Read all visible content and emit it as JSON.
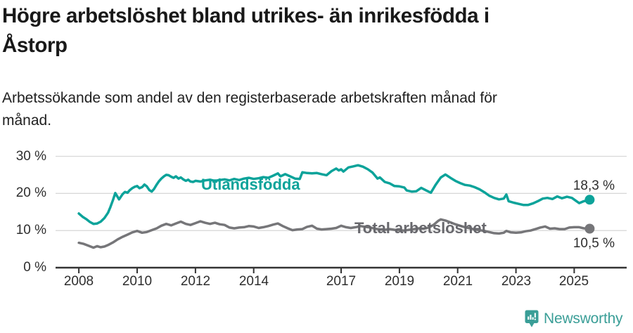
{
  "header": {
    "title_lines": [
      "Högre arbetslöshet bland utrikes- än inrikesfödda i",
      "Åstorp"
    ],
    "subtitle_lines": [
      "Arbetssökande som andel av den registerbaserade arbetskraften månad för",
      "månad."
    ]
  },
  "chart_data": {
    "type": "line",
    "title": "Högre arbetslöshet bland utrikes- än inrikesfödda i Åstorp",
    "subtitle": "Arbetssökande som andel av den registerbaserade arbetskraften månad för månad.",
    "xlabel": "",
    "ylabel": "",
    "xlim": [
      2007.2,
      2026.8
    ],
    "ylim": [
      0,
      30
    ],
    "grid": "horizontal",
    "legend": "inline-labels",
    "x_ticks": [
      2008,
      2010,
      2012,
      2014,
      2017,
      2019,
      2021,
      2023,
      2025
    ],
    "x_tick_labels": [
      "2008",
      "2010",
      "2012",
      "2014",
      "2017",
      "2019",
      "2021",
      "2023",
      "2025"
    ],
    "y_ticks": [
      0,
      10,
      20,
      30
    ],
    "y_tick_labels": [
      "0 %",
      "10 %",
      "20 %",
      "30 %"
    ],
    "series": [
      {
        "name": "Utlandsfödda",
        "color": "#0ca39a",
        "label_color": "#0ca39a",
        "end_label": "18,3 %",
        "end_value": 18.3,
        "points": [
          [
            2008.0,
            14.6
          ],
          [
            2008.13,
            13.7
          ],
          [
            2008.25,
            13.1
          ],
          [
            2008.38,
            12.3
          ],
          [
            2008.5,
            11.8
          ],
          [
            2008.63,
            11.9
          ],
          [
            2008.75,
            12.4
          ],
          [
            2008.88,
            13.4
          ],
          [
            2009.0,
            14.8
          ],
          [
            2009.08,
            16.3
          ],
          [
            2009.17,
            18.2
          ],
          [
            2009.25,
            20.1
          ],
          [
            2009.38,
            18.4
          ],
          [
            2009.5,
            19.8
          ],
          [
            2009.58,
            20.4
          ],
          [
            2009.67,
            20.2
          ],
          [
            2009.75,
            20.9
          ],
          [
            2009.83,
            21.4
          ],
          [
            2009.92,
            21.8
          ],
          [
            2010.0,
            22.0
          ],
          [
            2010.08,
            21.4
          ],
          [
            2010.17,
            21.7
          ],
          [
            2010.25,
            22.4
          ],
          [
            2010.33,
            21.9
          ],
          [
            2010.42,
            20.9
          ],
          [
            2010.5,
            20.5
          ],
          [
            2010.58,
            21.2
          ],
          [
            2010.67,
            22.4
          ],
          [
            2010.75,
            23.3
          ],
          [
            2010.83,
            24.0
          ],
          [
            2010.92,
            24.6
          ],
          [
            2011.0,
            25.0
          ],
          [
            2011.08,
            24.9
          ],
          [
            2011.17,
            24.5
          ],
          [
            2011.25,
            24.2
          ],
          [
            2011.33,
            24.6
          ],
          [
            2011.42,
            24.0
          ],
          [
            2011.5,
            24.3
          ],
          [
            2011.58,
            23.8
          ],
          [
            2011.67,
            23.4
          ],
          [
            2011.75,
            23.7
          ],
          [
            2011.83,
            23.2
          ],
          [
            2011.92,
            23.1
          ],
          [
            2012.0,
            23.4
          ],
          [
            2012.17,
            23.2
          ],
          [
            2012.33,
            23.5
          ],
          [
            2012.5,
            23.7
          ],
          [
            2012.67,
            23.4
          ],
          [
            2012.83,
            23.6
          ],
          [
            2013.0,
            23.8
          ],
          [
            2013.17,
            23.5
          ],
          [
            2013.33,
            23.9
          ],
          [
            2013.5,
            23.6
          ],
          [
            2013.67,
            24.0
          ],
          [
            2013.83,
            24.2
          ],
          [
            2014.0,
            23.9
          ],
          [
            2014.17,
            24.1
          ],
          [
            2014.33,
            24.4
          ],
          [
            2014.5,
            24.2
          ],
          [
            2014.67,
            24.8
          ],
          [
            2014.83,
            25.4
          ],
          [
            2014.92,
            24.6
          ],
          [
            2015.08,
            25.2
          ],
          [
            2015.25,
            24.6
          ],
          [
            2015.42,
            24.0
          ],
          [
            2015.58,
            23.9
          ],
          [
            2015.67,
            25.7
          ],
          [
            2015.83,
            25.5
          ],
          [
            2016.0,
            25.4
          ],
          [
            2016.17,
            25.5
          ],
          [
            2016.33,
            25.2
          ],
          [
            2016.5,
            24.9
          ],
          [
            2016.67,
            26.0
          ],
          [
            2016.83,
            26.7
          ],
          [
            2016.92,
            26.2
          ],
          [
            2017.0,
            26.5
          ],
          [
            2017.08,
            25.9
          ],
          [
            2017.25,
            27.0
          ],
          [
            2017.42,
            27.3
          ],
          [
            2017.58,
            27.6
          ],
          [
            2017.75,
            27.2
          ],
          [
            2017.92,
            26.5
          ],
          [
            2018.08,
            25.6
          ],
          [
            2018.25,
            24.0
          ],
          [
            2018.33,
            24.3
          ],
          [
            2018.5,
            23.1
          ],
          [
            2018.67,
            22.7
          ],
          [
            2018.83,
            22.0
          ],
          [
            2019.0,
            21.9
          ],
          [
            2019.17,
            21.6
          ],
          [
            2019.25,
            20.8
          ],
          [
            2019.42,
            20.5
          ],
          [
            2019.58,
            20.6
          ],
          [
            2019.75,
            21.5
          ],
          [
            2019.92,
            20.8
          ],
          [
            2020.08,
            20.2
          ],
          [
            2020.25,
            22.4
          ],
          [
            2020.42,
            24.3
          ],
          [
            2020.58,
            25.1
          ],
          [
            2020.75,
            24.2
          ],
          [
            2020.92,
            23.4
          ],
          [
            2021.08,
            22.8
          ],
          [
            2021.25,
            22.3
          ],
          [
            2021.42,
            22.1
          ],
          [
            2021.58,
            21.7
          ],
          [
            2021.75,
            21.1
          ],
          [
            2021.92,
            20.3
          ],
          [
            2022.08,
            19.4
          ],
          [
            2022.25,
            18.8
          ],
          [
            2022.42,
            18.4
          ],
          [
            2022.58,
            18.6
          ],
          [
            2022.67,
            19.7
          ],
          [
            2022.75,
            17.9
          ],
          [
            2022.92,
            17.5
          ],
          [
            2023.08,
            17.2
          ],
          [
            2023.25,
            16.9
          ],
          [
            2023.42,
            16.9
          ],
          [
            2023.58,
            17.3
          ],
          [
            2023.75,
            17.9
          ],
          [
            2023.92,
            18.6
          ],
          [
            2024.08,
            18.8
          ],
          [
            2024.25,
            18.5
          ],
          [
            2024.42,
            19.2
          ],
          [
            2024.58,
            18.7
          ],
          [
            2024.75,
            19.1
          ],
          [
            2024.92,
            18.8
          ],
          [
            2025.08,
            17.9
          ],
          [
            2025.17,
            17.4
          ],
          [
            2025.33,
            17.9
          ],
          [
            2025.53,
            18.3
          ]
        ]
      },
      {
        "name": "Total arbetslöshet",
        "color": "#767679",
        "label_color": "#68686d",
        "end_label": "10,5 %",
        "end_value": 10.5,
        "points": [
          [
            2008.0,
            6.7
          ],
          [
            2008.17,
            6.4
          ],
          [
            2008.33,
            5.9
          ],
          [
            2008.5,
            5.4
          ],
          [
            2008.63,
            5.8
          ],
          [
            2008.75,
            5.5
          ],
          [
            2008.88,
            5.7
          ],
          [
            2009.0,
            6.1
          ],
          [
            2009.17,
            6.8
          ],
          [
            2009.33,
            7.6
          ],
          [
            2009.5,
            8.3
          ],
          [
            2009.67,
            8.9
          ],
          [
            2009.83,
            9.5
          ],
          [
            2010.0,
            9.9
          ],
          [
            2010.17,
            9.4
          ],
          [
            2010.33,
            9.6
          ],
          [
            2010.5,
            10.1
          ],
          [
            2010.67,
            10.6
          ],
          [
            2010.83,
            11.3
          ],
          [
            2011.0,
            11.8
          ],
          [
            2011.17,
            11.4
          ],
          [
            2011.33,
            11.9
          ],
          [
            2011.5,
            12.4
          ],
          [
            2011.67,
            11.8
          ],
          [
            2011.83,
            11.5
          ],
          [
            2012.0,
            12.0
          ],
          [
            2012.17,
            12.5
          ],
          [
            2012.33,
            12.1
          ],
          [
            2012.5,
            11.8
          ],
          [
            2012.67,
            12.1
          ],
          [
            2012.83,
            11.7
          ],
          [
            2013.0,
            11.5
          ],
          [
            2013.17,
            10.8
          ],
          [
            2013.33,
            10.6
          ],
          [
            2013.5,
            10.8
          ],
          [
            2013.67,
            10.9
          ],
          [
            2013.83,
            11.2
          ],
          [
            2014.0,
            11.1
          ],
          [
            2014.17,
            10.7
          ],
          [
            2014.33,
            10.9
          ],
          [
            2014.5,
            11.2
          ],
          [
            2014.67,
            11.6
          ],
          [
            2014.83,
            11.9
          ],
          [
            2015.0,
            11.2
          ],
          [
            2015.17,
            10.6
          ],
          [
            2015.33,
            10.1
          ],
          [
            2015.5,
            10.3
          ],
          [
            2015.67,
            10.4
          ],
          [
            2015.83,
            11.0
          ],
          [
            2016.0,
            11.3
          ],
          [
            2016.17,
            10.5
          ],
          [
            2016.33,
            10.3
          ],
          [
            2016.5,
            10.4
          ],
          [
            2016.67,
            10.5
          ],
          [
            2016.83,
            10.7
          ],
          [
            2017.0,
            11.3
          ],
          [
            2017.17,
            10.9
          ],
          [
            2017.33,
            10.7
          ],
          [
            2017.5,
            10.9
          ],
          [
            2017.67,
            11.2
          ],
          [
            2017.83,
            11.0
          ],
          [
            2018.0,
            10.8
          ],
          [
            2018.17,
            10.5
          ],
          [
            2018.33,
            10.3
          ],
          [
            2018.5,
            10.2
          ],
          [
            2018.67,
            10.4
          ],
          [
            2018.83,
            10.2
          ],
          [
            2019.0,
            10.1
          ],
          [
            2019.17,
            10.0
          ],
          [
            2019.33,
            10.2
          ],
          [
            2019.5,
            10.4
          ],
          [
            2019.67,
            10.6
          ],
          [
            2019.83,
            10.5
          ],
          [
            2020.0,
            10.8
          ],
          [
            2020.17,
            11.5
          ],
          [
            2020.33,
            12.6
          ],
          [
            2020.42,
            13.0
          ],
          [
            2020.58,
            12.7
          ],
          [
            2020.75,
            12.2
          ],
          [
            2020.92,
            11.7
          ],
          [
            2021.08,
            11.3
          ],
          [
            2021.25,
            10.9
          ],
          [
            2021.42,
            10.6
          ],
          [
            2021.58,
            10.3
          ],
          [
            2021.75,
            10.1
          ],
          [
            2021.92,
            9.9
          ],
          [
            2022.08,
            9.6
          ],
          [
            2022.25,
            9.3
          ],
          [
            2022.42,
            9.2
          ],
          [
            2022.58,
            9.4
          ],
          [
            2022.67,
            9.9
          ],
          [
            2022.83,
            9.5
          ],
          [
            2023.0,
            9.4
          ],
          [
            2023.17,
            9.5
          ],
          [
            2023.33,
            9.8
          ],
          [
            2023.5,
            10.0
          ],
          [
            2023.67,
            10.4
          ],
          [
            2023.83,
            10.8
          ],
          [
            2024.0,
            11.1
          ],
          [
            2024.17,
            10.5
          ],
          [
            2024.33,
            10.6
          ],
          [
            2024.5,
            10.4
          ],
          [
            2024.67,
            10.4
          ],
          [
            2024.83,
            10.8
          ],
          [
            2025.0,
            10.9
          ],
          [
            2025.17,
            10.9
          ],
          [
            2025.33,
            10.6
          ],
          [
            2025.53,
            10.5
          ]
        ]
      }
    ]
  },
  "footer": {
    "brand": "Newsworthy",
    "brand_color": "#3a9e97",
    "logo_icon": "newsworthy-chart-bubble-icon"
  }
}
